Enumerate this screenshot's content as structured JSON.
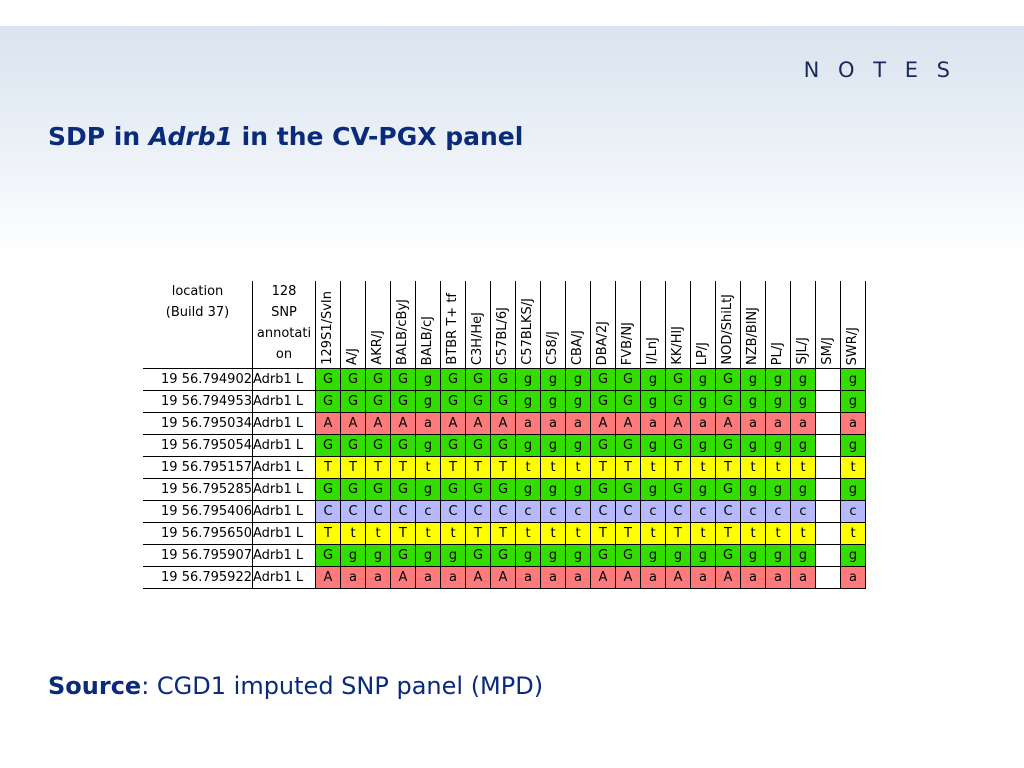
{
  "header": {
    "notes_label": "N O T E S"
  },
  "title": {
    "prefix": "SDP in ",
    "gene": "Adrb1",
    "suffix": " in the CV-PGX panel"
  },
  "source": {
    "label": "Source",
    "text": ": CGD1 imputed SNP panel (MPD)"
  },
  "colors": {
    "G": "#33dd00",
    "A": "#ff7b7b",
    "T": "#ffff00",
    "C": "#b8b8ff",
    "empty": "#ffffff"
  },
  "table": {
    "col_location": "location (Build 37)",
    "col_location_lines": [
      "location",
      "(Build 37)"
    ],
    "col_snp_lines": [
      "128",
      "SNP",
      "annotati",
      "on"
    ],
    "strains": [
      "129S1/SvIn",
      "A/J",
      "AKR/J",
      "BALB/cByJ",
      "BALB/cJ",
      "BTBR T+ tf",
      "C3H/HeJ",
      "C57BL/6J",
      "C57BLKS/J",
      "C58/J",
      "CBA/J",
      "DBA/2J",
      "FVB/NJ",
      "I/LnJ",
      "KK/HlJ",
      "LP/J",
      "NOD/ShiLtJ",
      "NZB/BlNJ",
      "PL/J",
      "SJL/J",
      "SM/J",
      "SWR/J"
    ],
    "rows": [
      {
        "location": "19 56.794902",
        "snp": "Adrb1 L",
        "calls": [
          "G",
          "G",
          "G",
          "G",
          "g",
          "G",
          "G",
          "G",
          "g",
          "g",
          "g",
          "G",
          "G",
          "g",
          "G",
          "g",
          "G",
          "g",
          "g",
          "g",
          "",
          "g"
        ]
      },
      {
        "location": "19 56.794953",
        "snp": "Adrb1 L",
        "calls": [
          "G",
          "G",
          "G",
          "G",
          "g",
          "G",
          "G",
          "G",
          "g",
          "g",
          "g",
          "G",
          "G",
          "g",
          "G",
          "g",
          "G",
          "g",
          "g",
          "g",
          "",
          "g"
        ]
      },
      {
        "location": "19 56.795034",
        "snp": "Adrb1 L",
        "calls": [
          "A",
          "A",
          "A",
          "A",
          "a",
          "A",
          "A",
          "A",
          "a",
          "a",
          "a",
          "A",
          "A",
          "a",
          "A",
          "a",
          "A",
          "a",
          "a",
          "a",
          "",
          "a"
        ]
      },
      {
        "location": "19 56.795054",
        "snp": "Adrb1 L",
        "calls": [
          "G",
          "G",
          "G",
          "G",
          "g",
          "G",
          "G",
          "G",
          "g",
          "g",
          "g",
          "G",
          "G",
          "g",
          "G",
          "g",
          "G",
          "g",
          "g",
          "g",
          "",
          "g"
        ]
      },
      {
        "location": "19 56.795157",
        "snp": "Adrb1 L",
        "calls": [
          "T",
          "T",
          "T",
          "T",
          "t",
          "T",
          "T",
          "T",
          "t",
          "t",
          "t",
          "T",
          "T",
          "t",
          "T",
          "t",
          "T",
          "t",
          "t",
          "t",
          "",
          "t"
        ]
      },
      {
        "location": "19 56.795285",
        "snp": "Adrb1 L",
        "calls": [
          "G",
          "G",
          "G",
          "G",
          "g",
          "G",
          "G",
          "G",
          "g",
          "g",
          "g",
          "G",
          "G",
          "g",
          "G",
          "g",
          "G",
          "g",
          "g",
          "g",
          "",
          "g"
        ]
      },
      {
        "location": "19 56.795406",
        "snp": "Adrb1 L",
        "calls": [
          "C",
          "C",
          "C",
          "C",
          "c",
          "C",
          "C",
          "C",
          "c",
          "c",
          "c",
          "C",
          "C",
          "c",
          "C",
          "c",
          "C",
          "c",
          "c",
          "c",
          "",
          "c"
        ]
      },
      {
        "location": "19 56.795650",
        "snp": "Adrb1 L",
        "calls": [
          "T",
          "t",
          "t",
          "T",
          "t",
          "t",
          "T",
          "T",
          "t",
          "t",
          "t",
          "T",
          "T",
          "t",
          "T",
          "t",
          "T",
          "t",
          "t",
          "t",
          "",
          "t"
        ]
      },
      {
        "location": "19 56.795907",
        "snp": "Adrb1 L",
        "calls": [
          "G",
          "g",
          "g",
          "G",
          "g",
          "g",
          "G",
          "G",
          "g",
          "g",
          "g",
          "G",
          "G",
          "g",
          "g",
          "g",
          "G",
          "g",
          "g",
          "g",
          "",
          "g"
        ]
      },
      {
        "location": "19 56.795922",
        "snp": "Adrb1 L",
        "calls": [
          "A",
          "a",
          "a",
          "A",
          "a",
          "a",
          "A",
          "A",
          "a",
          "a",
          "a",
          "A",
          "A",
          "a",
          "A",
          "a",
          "A",
          "a",
          "a",
          "a",
          "",
          "a"
        ]
      }
    ]
  }
}
